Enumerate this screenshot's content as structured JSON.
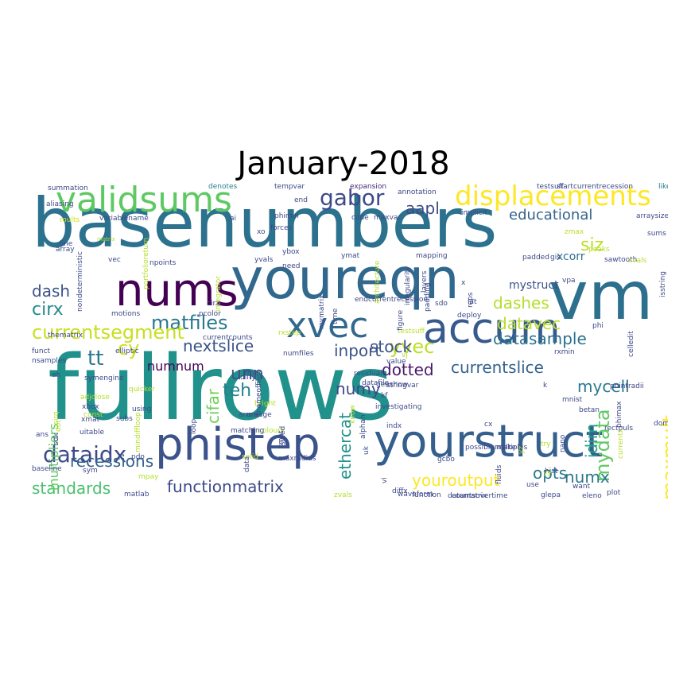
{
  "title": "January-2018",
  "words": [
    {
      "text": "basenumbers",
      "color": "#2c728e"
    },
    {
      "text": "fullrows",
      "color": "#21918c"
    },
    {
      "text": "vm",
      "color": "#2d708e"
    },
    {
      "text": "youreqn",
      "color": "#31688e"
    },
    {
      "text": "yourstruct",
      "color": "#355f8d"
    },
    {
      "text": "phistep",
      "color": "#3b528b"
    },
    {
      "text": "accum",
      "color": "#38598c"
    },
    {
      "text": "nums",
      "color": "#440154"
    },
    {
      "text": "validsums",
      "color": "#5ec962"
    },
    {
      "text": "xvec",
      "color": "#31688e"
    },
    {
      "text": "displacements",
      "color": "#fde725"
    },
    {
      "text": "gabor",
      "color": "#3e4989"
    },
    {
      "text": "aapl",
      "color": "#3e4a89"
    },
    {
      "text": "educational",
      "color": "#33638d"
    },
    {
      "text": "siz",
      "color": "#bddf26"
    },
    {
      "text": "dash",
      "color": "#3b528b"
    },
    {
      "text": "cy",
      "color": "#cde11d"
    },
    {
      "text": "matfiles",
      "color": "#2a788e"
    },
    {
      "text": "currentsegment",
      "color": "#c8e020"
    },
    {
      "text": "cirx",
      "color": "#23898e"
    },
    {
      "text": "nextslice",
      "color": "#3b528b"
    },
    {
      "text": "datasample",
      "color": "#2c728e"
    },
    {
      "text": "currentslice",
      "color": "#33638d"
    },
    {
      "text": "inport",
      "color": "#3b528b"
    },
    {
      "text": "yvec",
      "color": "#bddf26"
    },
    {
      "text": "dotted",
      "color": "#48186a"
    },
    {
      "text": "dashes",
      "color": "#b5de2b"
    },
    {
      "text": "datavec",
      "color": "#b8de29"
    },
    {
      "text": "stock",
      "color": "#3b528b"
    },
    {
      "text": "numnum",
      "color": "#440154"
    },
    {
      "text": "tt",
      "color": "#2a788e"
    },
    {
      "text": "teh",
      "color": "#26828e"
    },
    {
      "text": "unn",
      "color": "#3b528b"
    },
    {
      "text": "cifar",
      "color": "#70cf57"
    },
    {
      "text": "numy",
      "color": "#3e4a89"
    },
    {
      "text": "mydata",
      "color": "#5ec962"
    },
    {
      "text": "maxmult",
      "color": "#fde725"
    },
    {
      "text": "idim",
      "color": "#1fa088"
    },
    {
      "text": "mycell",
      "color": "#2a788e"
    },
    {
      "text": "dataidx",
      "color": "#3e4989"
    },
    {
      "text": "recessions",
      "color": "#33638d"
    },
    {
      "text": "standards",
      "color": "#4ac16d"
    },
    {
      "text": "functionmatrix",
      "color": "#3e4a89"
    },
    {
      "text": "youroutput",
      "color": "#fde725"
    },
    {
      "text": "opts",
      "color": "#2a788e"
    },
    {
      "text": "numx",
      "color": "#2a788e"
    },
    {
      "text": "ethercat",
      "color": "#21918c"
    },
    {
      "text": "multipliers",
      "color": "#5ec962"
    },
    {
      "text": "xcorr",
      "color": "#2d708e"
    },
    {
      "text": "mystruct",
      "color": "#3b528b"
    },
    {
      "text": "summation",
      "color": "#3e4989"
    },
    {
      "text": "denotes",
      "color": "#26828e"
    },
    {
      "text": "tempvar",
      "color": "#3e4989"
    },
    {
      "text": "expansion",
      "color": "#482878"
    },
    {
      "text": "testsuff",
      "color": "#3e4989"
    },
    {
      "text": "startcurrentrecession",
      "color": "#3e4989"
    },
    {
      "text": "like",
      "color": "#2a788e"
    },
    {
      "text": "annotation",
      "color": "#3e4989"
    },
    {
      "text": "implicit",
      "color": "#3e4989"
    },
    {
      "text": "arraysize",
      "color": "#3e4a89"
    },
    {
      "text": "maxvar",
      "color": "#3e4989"
    },
    {
      "text": "code",
      "color": "#3e4989"
    },
    {
      "text": "phimin",
      "color": "#3e4989"
    },
    {
      "text": "forces",
      "color": "#3e4989"
    },
    {
      "text": "variablename",
      "color": "#3e4989"
    },
    {
      "text": "mults",
      "color": "#cde11d"
    },
    {
      "text": "ai",
      "color": "#3e4989"
    },
    {
      "text": "line",
      "color": "#3e4989"
    },
    {
      "text": "array",
      "color": "#3e4989"
    },
    {
      "text": "matrix",
      "color": "#b5de2b"
    },
    {
      "text": "vec",
      "color": "#3e4989"
    },
    {
      "text": "npoints",
      "color": "#3e4989"
    },
    {
      "text": "yvals",
      "color": "#3e4989"
    },
    {
      "text": "ybox",
      "color": "#3e4989"
    },
    {
      "text": "need",
      "color": "#3e4989"
    },
    {
      "text": "ymat",
      "color": "#3e4989"
    },
    {
      "text": "mapping",
      "color": "#3e4989"
    },
    {
      "text": "peaks",
      "color": "#b5de2b"
    },
    {
      "text": "padded",
      "color": "#3e4989"
    },
    {
      "text": "gis",
      "color": "#3e4989"
    },
    {
      "text": "sawtooth",
      "color": "#3e4989"
    },
    {
      "text": "xvals",
      "color": "#b5de2b"
    },
    {
      "text": "sums",
      "color": "#3e4989"
    },
    {
      "text": "isstring",
      "color": "#3e4989"
    },
    {
      "text": "vpa",
      "color": "#3e4989"
    },
    {
      "text": "lat",
      "color": "#3e4989"
    },
    {
      "text": "deploy",
      "color": "#3e4989"
    },
    {
      "text": "phi",
      "color": "#3e4989"
    },
    {
      "text": "celledit",
      "color": "#3e4989"
    },
    {
      "text": "motions",
      "color": "#3e4989"
    },
    {
      "text": "pcolor",
      "color": "#3e4989"
    },
    {
      "text": "cirz",
      "color": "#3e4989"
    },
    {
      "text": "thematrix",
      "color": "#3e4989"
    },
    {
      "text": "rxstep",
      "color": "#b5de2b"
    },
    {
      "text": "testsuff",
      "color": "#b5de2b"
    },
    {
      "text": "figure",
      "color": "#3e4989"
    },
    {
      "text": "vj",
      "color": "#b5de2b"
    },
    {
      "text": "funct",
      "color": "#3e4989"
    },
    {
      "text": "currentcounts",
      "color": "#3e4989"
    },
    {
      "text": "elliptic",
      "color": "#3e4989"
    },
    {
      "text": "nsamples",
      "color": "#3e4989"
    },
    {
      "text": "diffy",
      "color": "#3e4989"
    },
    {
      "text": "numfiles",
      "color": "#3e4989"
    },
    {
      "text": "residuals",
      "color": "#3e4989"
    },
    {
      "text": "datafile",
      "color": "#3e4989"
    },
    {
      "text": "zmin",
      "color": "#3e4989"
    },
    {
      "text": "pointradii",
      "color": "#3e4989"
    },
    {
      "text": "mnist",
      "color": "#3e4989"
    },
    {
      "text": "phimax",
      "color": "#3e4989"
    },
    {
      "text": "betan",
      "color": "#3e4989"
    },
    {
      "text": "rxmin",
      "color": "#3e4989"
    },
    {
      "text": "adjclose",
      "color": "#b5de2b"
    },
    {
      "text": "xbox",
      "color": "#3e4989"
    },
    {
      "text": "const",
      "color": "#b5de2b"
    },
    {
      "text": "quicker",
      "color": "#b5de2b"
    },
    {
      "text": "using",
      "color": "#3e4989"
    },
    {
      "text": "subs",
      "color": "#3e4989"
    },
    {
      "text": "bright",
      "color": "#b5de2b"
    },
    {
      "text": "nameoffile",
      "color": "#3e4989"
    },
    {
      "text": "investigating",
      "color": "#3e4989"
    },
    {
      "text": "geoshow",
      "color": "#3e4989"
    },
    {
      "text": "kf",
      "color": "#3e4989"
    },
    {
      "text": "indx",
      "color": "#3e4989"
    },
    {
      "text": "xmat",
      "color": "#3e4989"
    },
    {
      "text": "orange",
      "color": "#3e4989"
    },
    {
      "text": "colours",
      "color": "#b5de2b"
    },
    {
      "text": "cx",
      "color": "#3e4989"
    },
    {
      "text": "rectpuls",
      "color": "#3e4989"
    },
    {
      "text": "currentx",
      "color": "#b5de2b"
    },
    {
      "text": "dome",
      "color": "#3e4989"
    },
    {
      "text": "try",
      "color": "#b5de2b"
    },
    {
      "text": "possiblemultiples",
      "color": "#3e4989"
    },
    {
      "text": "make",
      "color": "#3e4989"
    },
    {
      "text": "gcbo",
      "color": "#3e4989"
    },
    {
      "text": "uitable",
      "color": "#3e4989"
    },
    {
      "text": "loop",
      "color": "#3e4989"
    },
    {
      "text": "matching",
      "color": "#3e4989"
    },
    {
      "text": "arrows",
      "color": "#3e4989"
    },
    {
      "text": "solid",
      "color": "#b5de2b"
    },
    {
      "text": "ans",
      "color": "#3e4989"
    },
    {
      "text": "maxradius",
      "color": "#3e4989"
    },
    {
      "text": "baseline",
      "color": "#3e4989"
    },
    {
      "text": "pdo",
      "color": "#3e4989"
    },
    {
      "text": "sym",
      "color": "#3e4989"
    },
    {
      "text": "mpay",
      "color": "#b5de2b"
    },
    {
      "text": "matlab",
      "color": "#3e4989"
    },
    {
      "text": "mindiff",
      "color": "#3e4989"
    },
    {
      "text": "expr",
      "color": "#3e4989"
    },
    {
      "text": "diffx",
      "color": "#3e4989"
    },
    {
      "text": "waveform",
      "color": "#3e4989"
    },
    {
      "text": "zvals",
      "color": "#b5de2b"
    },
    {
      "text": "function",
      "color": "#3e4989"
    },
    {
      "text": "countsovertime",
      "color": "#3e4989"
    },
    {
      "text": "glepa",
      "color": "#3e4989"
    },
    {
      "text": "eleno",
      "color": "#3e4989"
    },
    {
      "text": "datamatrix",
      "color": "#3e4989"
    },
    {
      "text": "want",
      "color": "#3e4989"
    },
    {
      "text": "plot",
      "color": "#3e4989"
    },
    {
      "text": "use",
      "color": "#3e4989"
    },
    {
      "text": "hist",
      "color": "#3e4989"
    },
    {
      "text": "yy",
      "color": "#b5de2b"
    },
    {
      "text": "zmax",
      "color": "#b5de2b"
    },
    {
      "text": "end",
      "color": "#3e4989"
    },
    {
      "text": "xo",
      "color": "#3e4989"
    },
    {
      "text": "ah",
      "color": "#3e4989"
    },
    {
      "text": "k",
      "color": "#3e4989"
    },
    {
      "text": "x",
      "color": "#3e4989"
    },
    {
      "text": "sdo",
      "color": "#3e4989"
    },
    {
      "text": "stringvar",
      "color": "#3e4989"
    },
    {
      "text": "value",
      "color": "#3e4989"
    },
    {
      "text": "time",
      "color": "#3e4989"
    },
    {
      "text": "endcurrentrecession",
      "color": "#3e4989"
    },
    {
      "text": "aliasing",
      "color": "#3e4989"
    },
    {
      "text": "nondeterministic",
      "color": "#3e4989"
    },
    {
      "text": "portfolioreturn",
      "color": "#b5de2b"
    },
    {
      "text": "integrator",
      "color": "#b5de2b"
    },
    {
      "text": "mymatrix",
      "color": "#3e4989"
    },
    {
      "text": "architecture",
      "color": "#b5de2b"
    },
    {
      "text": "irregularity",
      "color": "#3e4989"
    },
    {
      "text": "layers",
      "color": "#3e4989"
    },
    {
      "text": "reps",
      "color": "#3e4989"
    },
    {
      "text": "padding",
      "color": "#3e4989"
    },
    {
      "text": "fluids",
      "color": "#3e4989"
    },
    {
      "text": "vi",
      "color": "#3e4989"
    },
    {
      "text": "uk",
      "color": "#3e4989"
    },
    {
      "text": "alphan",
      "color": "#3e4989"
    },
    {
      "text": "know",
      "color": "#b5de2b"
    },
    {
      "text": "sided",
      "color": "#3e4989"
    },
    {
      "text": "zmat",
      "color": "#3e4989"
    },
    {
      "text": "sdk",
      "color": "#3e4989"
    },
    {
      "text": "dot",
      "color": "#b5de2b"
    },
    {
      "text": "cirq",
      "color": "#b5de2b"
    },
    {
      "text": "data",
      "color": "#3e4989"
    },
    {
      "text": "symengine",
      "color": "#3e4989"
    },
    {
      "text": "yz",
      "color": "#b5de2b"
    },
    {
      "text": "nano",
      "color": "#3e4989"
    },
    {
      "text": "mindiffloop",
      "color": "#b5de2b"
    }
  ]
}
